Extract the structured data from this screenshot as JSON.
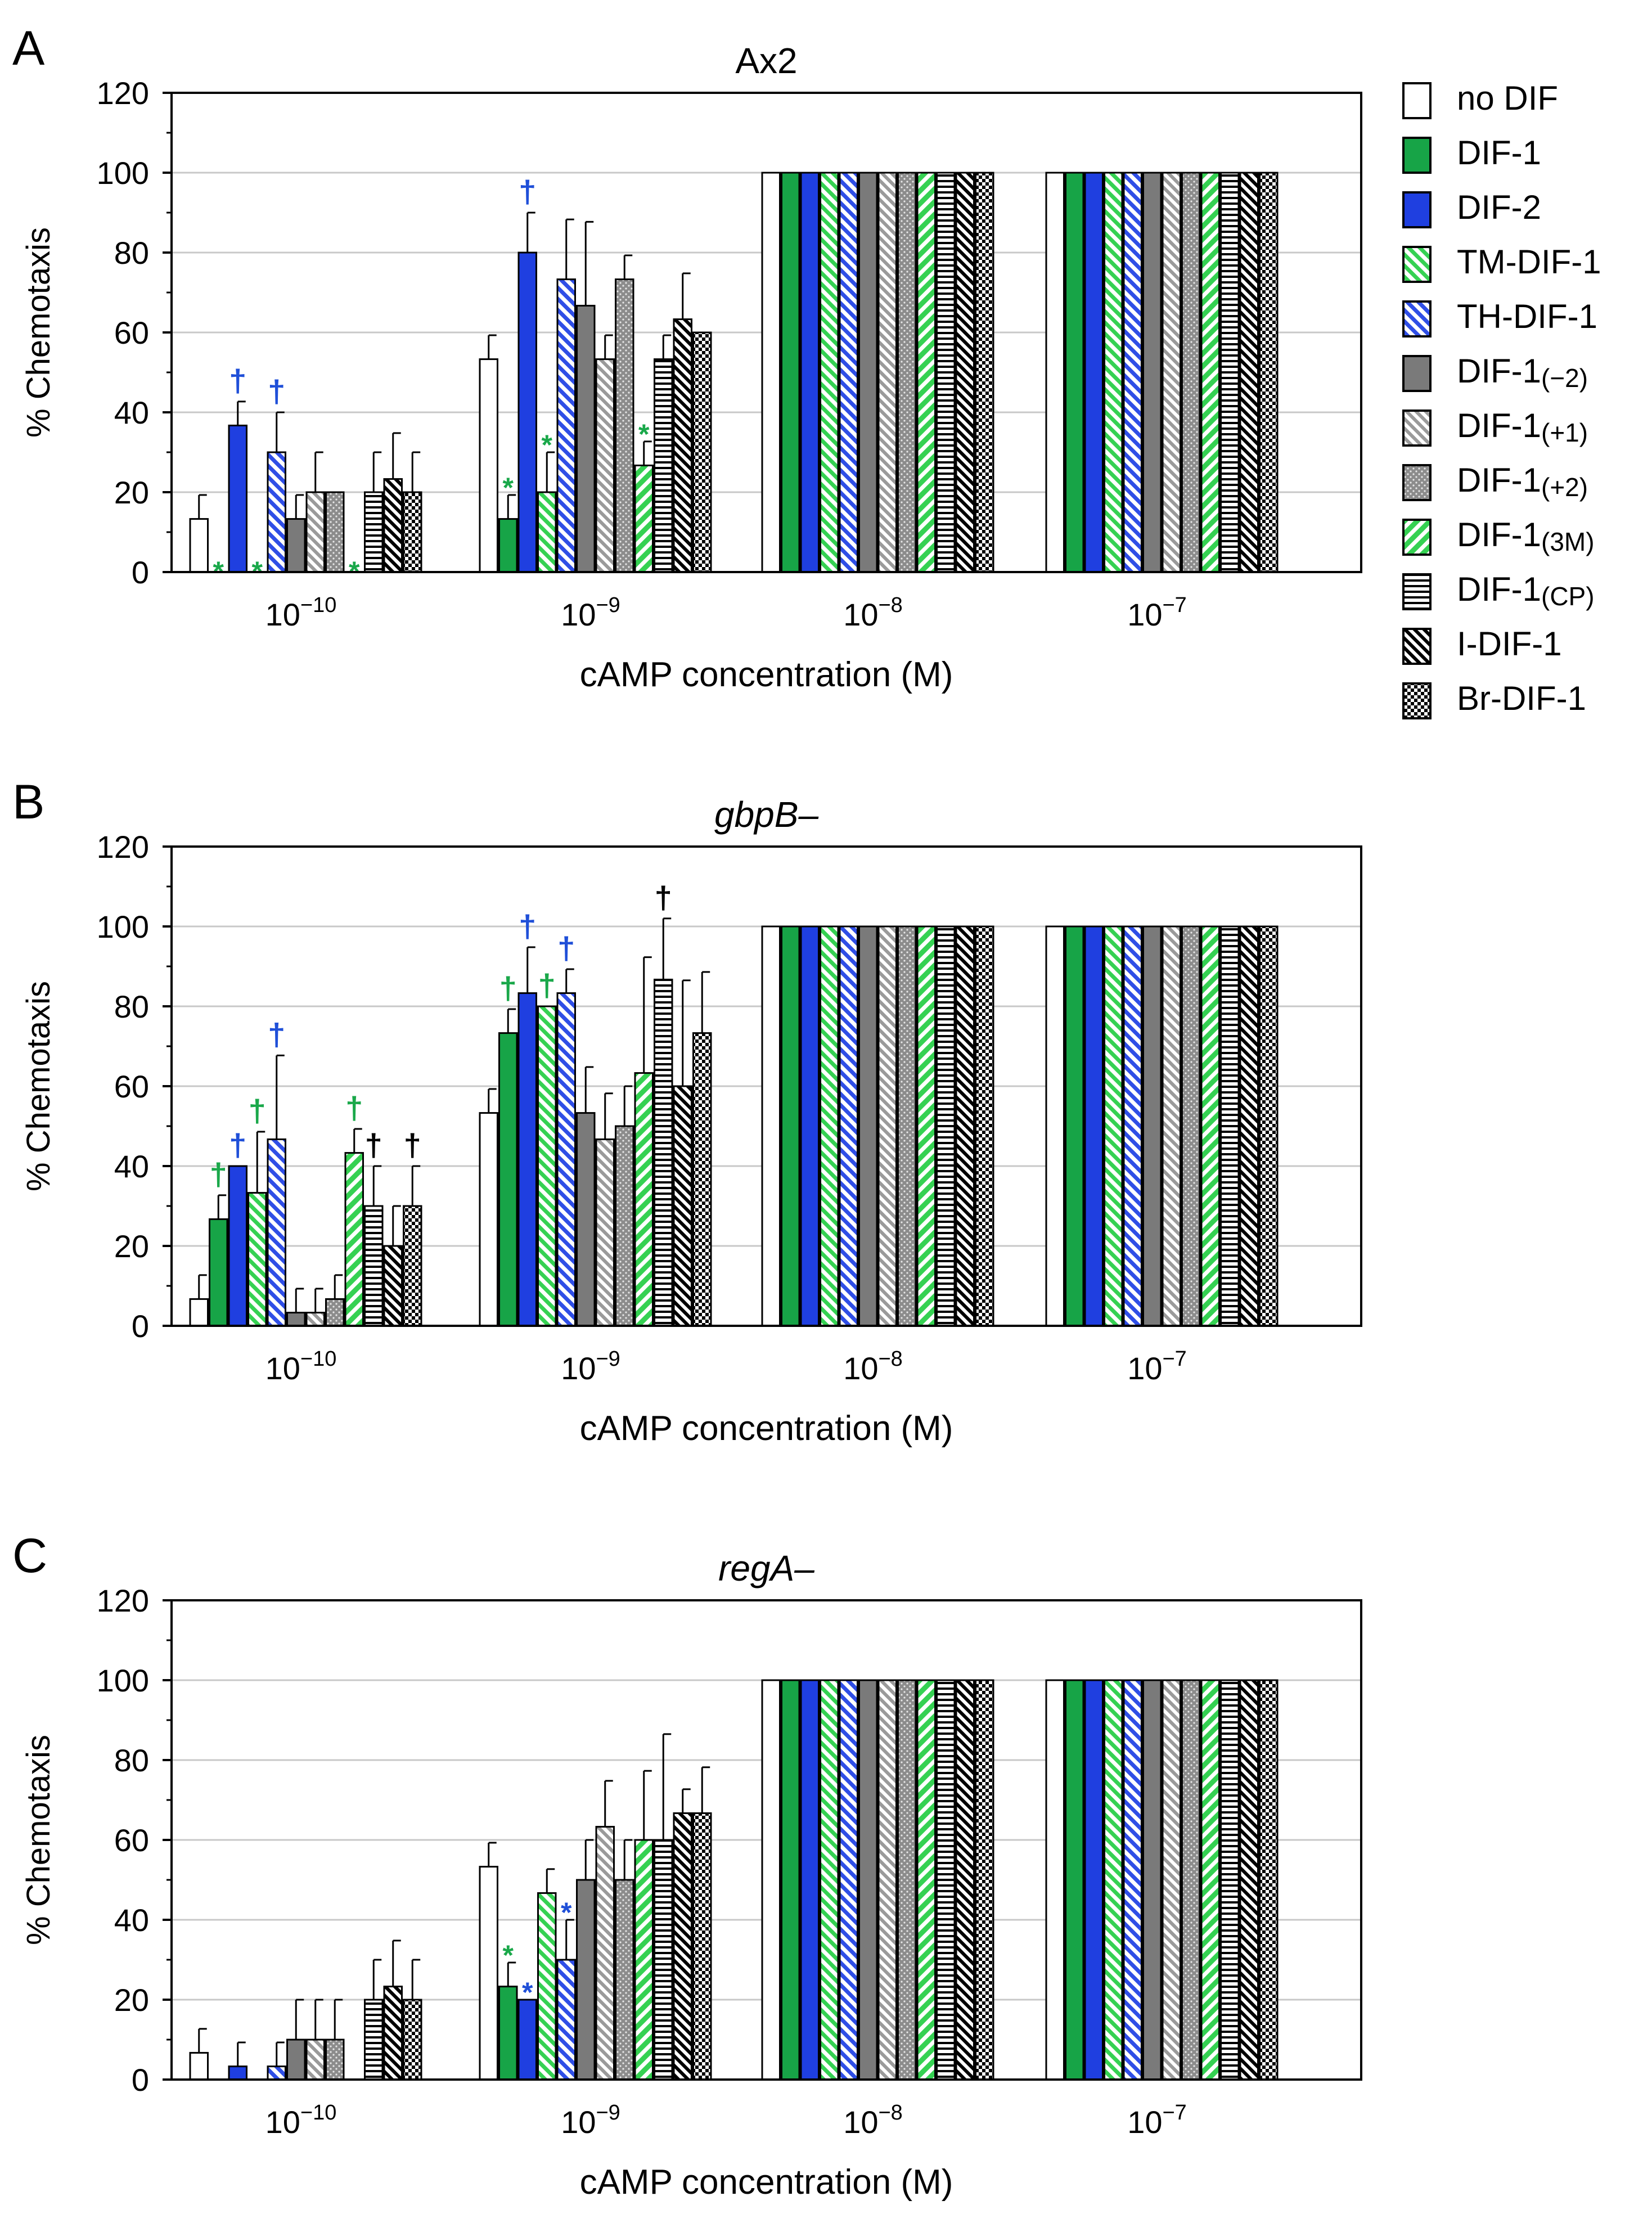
{
  "chart_data": [
    {
      "type": "bar",
      "panel_label": "A",
      "title": "Ax2",
      "title_italic": false,
      "ylabel": "% Chemotaxis",
      "xlabel": "cAMP concentration (M)",
      "ylim": [
        0,
        120
      ],
      "yticks": [
        0,
        20,
        40,
        60,
        80,
        100,
        120
      ],
      "categories": [
        "10^-10",
        "10^-9",
        "10^-8",
        "10^-7"
      ],
      "category_labels": [
        {
          "base": "10",
          "exp": "−10"
        },
        {
          "base": "10",
          "exp": "−9"
        },
        {
          "base": "10",
          "exp": "−8"
        },
        {
          "base": "10",
          "exp": "−7"
        }
      ],
      "series": [
        {
          "name": "no DIF",
          "values": [
            13.3,
            53.3,
            100,
            100
          ],
          "errors": [
            6,
            6,
            0,
            0
          ]
        },
        {
          "name": "DIF-1",
          "values": [
            0,
            13.3,
            100,
            100
          ],
          "errors": [
            0,
            6,
            0,
            0
          ]
        },
        {
          "name": "DIF-2",
          "values": [
            36.7,
            80,
            100,
            100
          ],
          "errors": [
            6,
            10,
            0,
            0
          ]
        },
        {
          "name": "TM-DIF-1",
          "values": [
            0,
            20,
            100,
            100
          ],
          "errors": [
            0,
            10,
            0,
            0
          ]
        },
        {
          "name": "TH-DIF-1",
          "values": [
            30,
            73.3,
            100,
            100
          ],
          "errors": [
            10,
            15,
            0,
            0
          ]
        },
        {
          "name": "DIF-1(−2)",
          "values": [
            13.3,
            66.7,
            100,
            100
          ],
          "errors": [
            6,
            21,
            0,
            0
          ]
        },
        {
          "name": "DIF-1(+1)",
          "values": [
            20,
            53.3,
            100,
            100
          ],
          "errors": [
            10,
            6,
            0,
            0
          ]
        },
        {
          "name": "DIF-1(+2)",
          "values": [
            20,
            73.3,
            100,
            100
          ],
          "errors": [
            0,
            6,
            0,
            0
          ]
        },
        {
          "name": "DIF-1(3M)",
          "values": [
            0,
            26.7,
            100,
            100
          ],
          "errors": [
            0,
            6,
            0,
            0
          ]
        },
        {
          "name": "DIF-1(CP)",
          "values": [
            20,
            53.3,
            100,
            100
          ],
          "errors": [
            10,
            6,
            0,
            0
          ]
        },
        {
          "name": "I-DIF-1",
          "values": [
            23.3,
            63.3,
            100,
            100
          ],
          "errors": [
            11.5,
            11.5,
            0,
            0
          ]
        },
        {
          "name": "Br-DIF-1",
          "values": [
            20,
            60,
            100,
            100
          ],
          "errors": [
            10,
            0,
            0,
            0
          ]
        }
      ],
      "annotations": [
        {
          "category": 0,
          "series": 1,
          "symbol": "*",
          "color": "#1aa84a"
        },
        {
          "category": 0,
          "series": 2,
          "symbol": "†",
          "color": "#1f4fd8"
        },
        {
          "category": 0,
          "series": 3,
          "symbol": "*",
          "color": "#1aa84a"
        },
        {
          "category": 0,
          "series": 4,
          "symbol": "†",
          "color": "#1f4fd8"
        },
        {
          "category": 0,
          "series": 8,
          "symbol": "*",
          "color": "#1aa84a"
        },
        {
          "category": 1,
          "series": 1,
          "symbol": "*",
          "color": "#1aa84a"
        },
        {
          "category": 1,
          "series": 2,
          "symbol": "†",
          "color": "#1f4fd8"
        },
        {
          "category": 1,
          "series": 3,
          "symbol": "*",
          "color": "#1aa84a"
        },
        {
          "category": 1,
          "series": 8,
          "symbol": "*",
          "color": "#1aa84a"
        }
      ]
    },
    {
      "type": "bar",
      "panel_label": "B",
      "title": "gbpB–",
      "title_italic": true,
      "ylabel": "% Chemotaxis",
      "xlabel": "cAMP concentration (M)",
      "ylim": [
        0,
        120
      ],
      "yticks": [
        0,
        20,
        40,
        60,
        80,
        100,
        120
      ],
      "categories": [
        "10^-10",
        "10^-9",
        "10^-8",
        "10^-7"
      ],
      "category_labels": [
        {
          "base": "10",
          "exp": "−10"
        },
        {
          "base": "10",
          "exp": "−9"
        },
        {
          "base": "10",
          "exp": "−8"
        },
        {
          "base": "10",
          "exp": "−7"
        }
      ],
      "series": [
        {
          "name": "no DIF",
          "values": [
            6.7,
            53.3,
            100,
            100
          ],
          "errors": [
            6,
            6,
            0,
            0
          ]
        },
        {
          "name": "DIF-1",
          "values": [
            26.7,
            73.3,
            100,
            100
          ],
          "errors": [
            6,
            6,
            0,
            0
          ]
        },
        {
          "name": "DIF-2",
          "values": [
            40,
            83.3,
            100,
            100
          ],
          "errors": [
            0,
            11.5,
            0,
            0
          ]
        },
        {
          "name": "TM-DIF-1",
          "values": [
            33.3,
            80,
            100,
            100
          ],
          "errors": [
            15.3,
            0,
            0,
            0
          ]
        },
        {
          "name": "TH-DIF-1",
          "values": [
            46.7,
            83.3,
            100,
            100
          ],
          "errors": [
            21,
            6,
            0,
            0
          ]
        },
        {
          "name": "DIF-1(−2)",
          "values": [
            3.3,
            53.3,
            100,
            100
          ],
          "errors": [
            6,
            11.5,
            0,
            0
          ]
        },
        {
          "name": "DIF-1(+1)",
          "values": [
            3.3,
            46.7,
            100,
            100
          ],
          "errors": [
            6,
            11.5,
            0,
            0
          ]
        },
        {
          "name": "DIF-1(+2)",
          "values": [
            6.7,
            50,
            100,
            100
          ],
          "errors": [
            6,
            10,
            0,
            0
          ]
        },
        {
          "name": "DIF-1(3M)",
          "values": [
            43.3,
            63.3,
            100,
            100
          ],
          "errors": [
            6,
            29,
            0,
            0
          ]
        },
        {
          "name": "DIF-1(CP)",
          "values": [
            30,
            86.7,
            100,
            100
          ],
          "errors": [
            10,
            15.3,
            0,
            0
          ]
        },
        {
          "name": "I-DIF-1",
          "values": [
            20,
            60,
            100,
            100
          ],
          "errors": [
            10,
            26.5,
            0,
            0
          ]
        },
        {
          "name": "Br-DIF-1",
          "values": [
            30,
            73.3,
            100,
            100
          ],
          "errors": [
            10,
            15.3,
            0,
            0
          ]
        }
      ],
      "annotations": [
        {
          "category": 0,
          "series": 1,
          "symbol": "†",
          "color": "#1aa84a"
        },
        {
          "category": 0,
          "series": 2,
          "symbol": "†",
          "color": "#1f4fd8"
        },
        {
          "category": 0,
          "series": 3,
          "symbol": "†",
          "color": "#1aa84a"
        },
        {
          "category": 0,
          "series": 4,
          "symbol": "†",
          "color": "#1f4fd8"
        },
        {
          "category": 0,
          "series": 8,
          "symbol": "†",
          "color": "#1aa84a"
        },
        {
          "category": 0,
          "series": 9,
          "symbol": "†",
          "color": "#000000"
        },
        {
          "category": 0,
          "series": 11,
          "symbol": "†",
          "color": "#000000"
        },
        {
          "category": 1,
          "series": 1,
          "symbol": "†",
          "color": "#1aa84a"
        },
        {
          "category": 1,
          "series": 2,
          "symbol": "†",
          "color": "#1f4fd8"
        },
        {
          "category": 1,
          "series": 3,
          "symbol": "†",
          "color": "#1aa84a"
        },
        {
          "category": 1,
          "series": 4,
          "symbol": "†",
          "color": "#1f4fd8"
        },
        {
          "category": 1,
          "series": 9,
          "symbol": "†",
          "color": "#000000"
        }
      ]
    },
    {
      "type": "bar",
      "panel_label": "C",
      "title": "regA–",
      "title_italic": true,
      "ylabel": "% Chemotaxis",
      "xlabel": "cAMP concentration (M)",
      "ylim": [
        0,
        120
      ],
      "yticks": [
        0,
        20,
        40,
        60,
        80,
        100,
        120
      ],
      "categories": [
        "10^-10",
        "10^-9",
        "10^-8",
        "10^-7"
      ],
      "category_labels": [
        {
          "base": "10",
          "exp": "−10"
        },
        {
          "base": "10",
          "exp": "−9"
        },
        {
          "base": "10",
          "exp": "−8"
        },
        {
          "base": "10",
          "exp": "−7"
        }
      ],
      "series": [
        {
          "name": "no DIF",
          "values": [
            6.7,
            53.3,
            100,
            100
          ],
          "errors": [
            6,
            6,
            0,
            0
          ]
        },
        {
          "name": "DIF-1",
          "values": [
            0,
            23.3,
            100,
            100
          ],
          "errors": [
            0,
            6,
            0,
            0
          ]
        },
        {
          "name": "DIF-2",
          "values": [
            3.3,
            20,
            100,
            100
          ],
          "errors": [
            6,
            0,
            0,
            0
          ]
        },
        {
          "name": "TM-DIF-1",
          "values": [
            0,
            46.7,
            100,
            100
          ],
          "errors": [
            0,
            6,
            0,
            0
          ]
        },
        {
          "name": "TH-DIF-1",
          "values": [
            3.3,
            30,
            100,
            100
          ],
          "errors": [
            6,
            10,
            0,
            0
          ]
        },
        {
          "name": "DIF-1(−2)",
          "values": [
            10,
            50,
            100,
            100
          ],
          "errors": [
            10,
            10,
            0,
            0
          ]
        },
        {
          "name": "DIF-1(+1)",
          "values": [
            10,
            63.3,
            100,
            100
          ],
          "errors": [
            10,
            11.5,
            0,
            0
          ]
        },
        {
          "name": "DIF-1(+2)",
          "values": [
            10,
            50,
            100,
            100
          ],
          "errors": [
            10,
            10,
            0,
            0
          ]
        },
        {
          "name": "DIF-1(3M)",
          "values": [
            0,
            60,
            100,
            100
          ],
          "errors": [
            0,
            17.3,
            0,
            0
          ]
        },
        {
          "name": "DIF-1(CP)",
          "values": [
            20,
            60,
            100,
            100
          ],
          "errors": [
            10,
            26.5,
            0,
            0
          ]
        },
        {
          "name": "I-DIF-1",
          "values": [
            23.3,
            66.7,
            100,
            100
          ],
          "errors": [
            11.5,
            6,
            0,
            0
          ]
        },
        {
          "name": "Br-DIF-1",
          "values": [
            20,
            66.7,
            100,
            100
          ],
          "errors": [
            10,
            11.5,
            0,
            0
          ]
        }
      ],
      "annotations": [
        {
          "category": 1,
          "series": 1,
          "symbol": "*",
          "color": "#1aa84a"
        },
        {
          "category": 1,
          "series": 2,
          "symbol": "*",
          "color": "#1f4fd8"
        },
        {
          "category": 1,
          "series": 4,
          "symbol": "*",
          "color": "#1f4fd8"
        }
      ]
    }
  ],
  "legend": {
    "placement": "top-right",
    "items": [
      {
        "label": "no DIF",
        "sub": "",
        "pattern": "white"
      },
      {
        "label": "DIF-1",
        "sub": "",
        "pattern": "green"
      },
      {
        "label": "DIF-2",
        "sub": "",
        "pattern": "blue"
      },
      {
        "label": "TM-DIF-1",
        "sub": "",
        "pattern": "green-diag"
      },
      {
        "label": "TH-DIF-1",
        "sub": "",
        "pattern": "blue-diag"
      },
      {
        "label": "DIF-1",
        "sub": "(−2)",
        "pattern": "gray"
      },
      {
        "label": "DIF-1",
        "sub": "(+1)",
        "pattern": "gray-diag"
      },
      {
        "label": "DIF-1",
        "sub": "(+2)",
        "pattern": "gray-dots"
      },
      {
        "label": "DIF-1",
        "sub": "(3M)",
        "pattern": "green-diag-r"
      },
      {
        "label": "DIF-1",
        "sub": "(CP)",
        "pattern": "hstripe"
      },
      {
        "label": "I-DIF-1",
        "sub": "",
        "pattern": "black-diag"
      },
      {
        "label": "Br-DIF-1",
        "sub": "",
        "pattern": "checker"
      }
    ]
  },
  "colors": {
    "green": "#17a447",
    "blue": "#1f3fe0",
    "green_light": "#35d152",
    "blue_light": "#4a66f0",
    "gray": "#7a7a7a",
    "gray_light": "#a8a8a8",
    "grid": "#c8c8c8",
    "annot_green": "#1aa84a",
    "annot_blue": "#1f4fd8"
  }
}
